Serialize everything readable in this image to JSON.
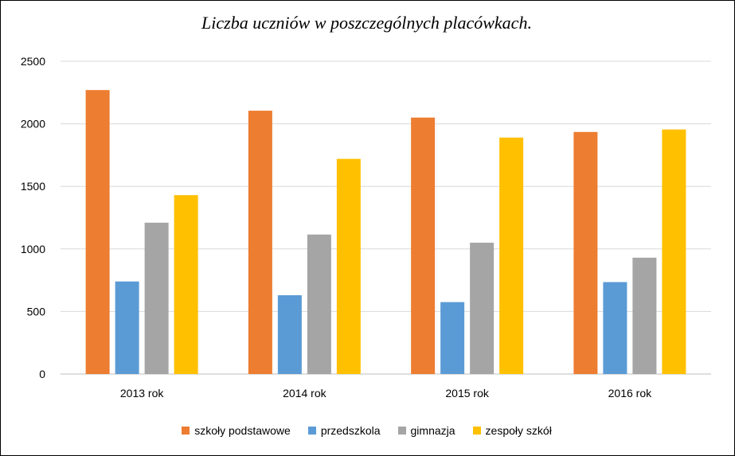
{
  "chart_data": {
    "type": "bar",
    "title": "Liczba uczniów w poszczególnych placówkach.",
    "xlabel": "",
    "ylabel": "",
    "categories": [
      "2013 rok",
      "2014 rok",
      "2015 rok",
      "2016 rok"
    ],
    "ylim": [
      0,
      2500
    ],
    "yticks": [
      0,
      500,
      1000,
      1500,
      2000,
      2500
    ],
    "grid": true,
    "legend_position": "bottom",
    "series": [
      {
        "name": "szkoły podstawowe",
        "color": "#ED7D31",
        "values": [
          2270,
          2105,
          2050,
          1935
        ]
      },
      {
        "name": "przedszkola",
        "color": "#5B9BD5",
        "values": [
          740,
          630,
          575,
          735
        ]
      },
      {
        "name": "gimnazja",
        "color": "#A5A5A5",
        "values": [
          1210,
          1115,
          1050,
          930
        ]
      },
      {
        "name": "zespoły szkół",
        "color": "#FFC000",
        "values": [
          1430,
          1720,
          1890,
          1955
        ]
      }
    ]
  }
}
